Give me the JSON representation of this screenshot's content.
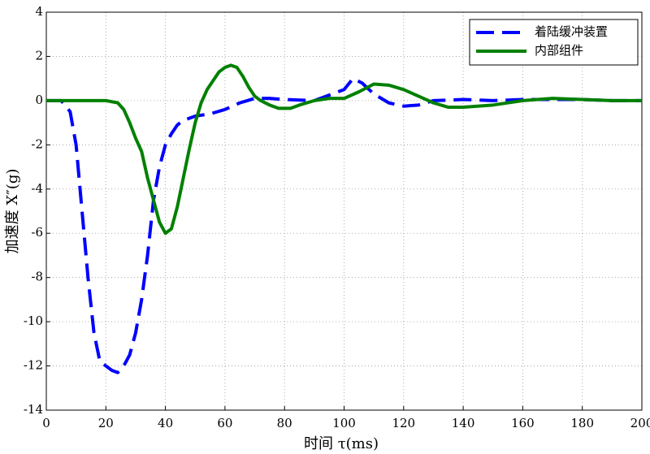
{
  "chart_data": {
    "type": "line",
    "xlabel": "时间 τ(ms)",
    "ylabel": "加速度 X″(g)",
    "xlim": [
      0,
      200
    ],
    "ylim": [
      -14,
      4
    ],
    "xticks": [
      0,
      20,
      40,
      60,
      80,
      100,
      120,
      140,
      160,
      180,
      200
    ],
    "yticks": [
      -14,
      -12,
      -10,
      -8,
      -6,
      -4,
      -2,
      0,
      2,
      4
    ],
    "grid": true,
    "legend": "upper right",
    "series": [
      {
        "name": "着陆缓冲装置",
        "color": "#0000ff",
        "dash": true,
        "x": [
          0,
          5,
          8,
          10,
          12,
          14,
          16,
          18,
          20,
          22,
          24,
          26,
          28,
          30,
          32,
          34,
          36,
          38,
          40,
          42,
          44,
          46,
          48,
          50,
          55,
          60,
          65,
          70,
          75,
          80,
          90,
          100,
          103,
          106,
          110,
          115,
          120,
          125,
          130,
          140,
          150,
          160,
          170,
          180,
          190,
          200
        ],
        "values": [
          0,
          0,
          -0.5,
          -2,
          -5,
          -8,
          -10.5,
          -11.8,
          -12,
          -12.2,
          -12.3,
          -12,
          -11.5,
          -10.5,
          -9,
          -7,
          -4.5,
          -3,
          -2,
          -1.5,
          -1.1,
          -0.9,
          -0.8,
          -0.7,
          -0.6,
          -0.4,
          -0.1,
          0.1,
          0.1,
          0.05,
          0,
          0.5,
          1.0,
          0.8,
          0.3,
          -0.1,
          -0.25,
          -0.2,
          0,
          0.05,
          0,
          0.05,
          0.05,
          0.05,
          0,
          0
        ]
      },
      {
        "name": "内部组件",
        "color": "#008000",
        "dash": false,
        "x": [
          0,
          20,
          24,
          26,
          28,
          30,
          32,
          34,
          36,
          38,
          40,
          42,
          44,
          46,
          48,
          50,
          52,
          54,
          56,
          58,
          60,
          62,
          64,
          66,
          68,
          70,
          72,
          75,
          78,
          82,
          85,
          90,
          95,
          100,
          105,
          110,
          115,
          120,
          125,
          130,
          135,
          140,
          150,
          160,
          170,
          180,
          190,
          200
        ],
        "values": [
          0,
          0,
          -0.1,
          -0.4,
          -1,
          -1.7,
          -2.3,
          -3.5,
          -4.5,
          -5.5,
          -6,
          -5.8,
          -4.8,
          -3.5,
          -2.2,
          -1.0,
          -0.1,
          0.5,
          0.9,
          1.3,
          1.5,
          1.6,
          1.5,
          1.1,
          0.6,
          0.2,
          0,
          -0.2,
          -0.35,
          -0.35,
          -0.2,
          0,
          0.1,
          0.1,
          0.4,
          0.75,
          0.7,
          0.5,
          0.2,
          -0.1,
          -0.3,
          -0.3,
          -0.2,
          0,
          0.1,
          0.05,
          0,
          0
        ]
      }
    ]
  }
}
